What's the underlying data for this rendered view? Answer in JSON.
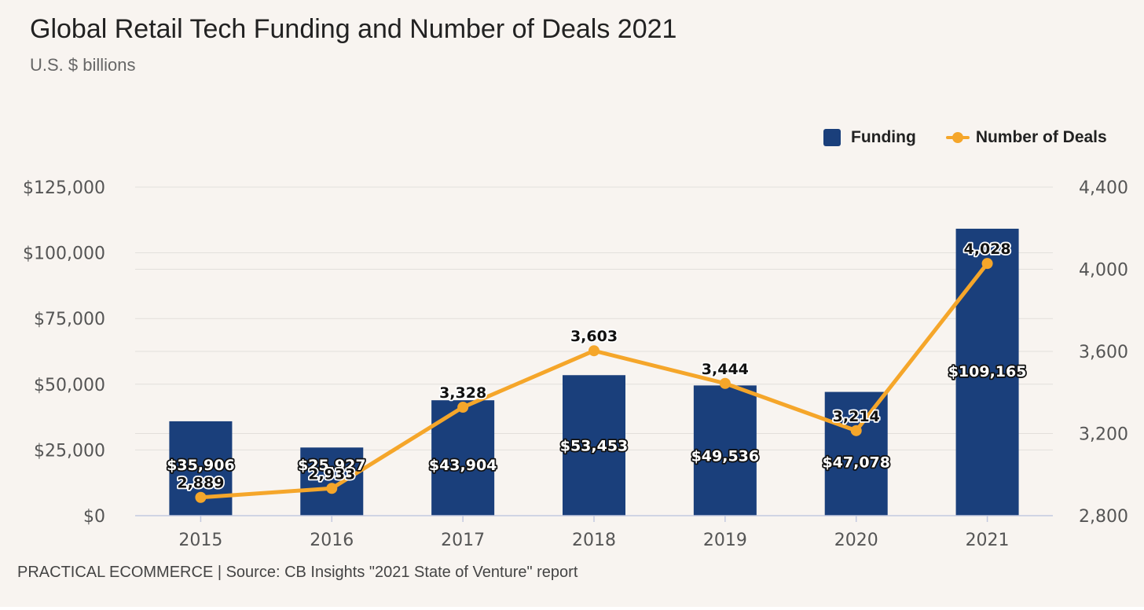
{
  "title": "Global Retail Tech Funding and Number of Deals 2021",
  "subtitle": "U.S. $ billions",
  "source": "PRACTICAL ECOMMERCE | Source: CB Insights \"2021 State of Venture\" report",
  "colors": {
    "background": "#f8f4f0",
    "funding": "#1a3f7b",
    "deals": "#f5a62a",
    "grid": "#e2dfdb",
    "axis": "#c3c9e0"
  },
  "chart_data": {
    "type": "bar",
    "categories": [
      "2015",
      "2016",
      "2017",
      "2018",
      "2019",
      "2020",
      "2021"
    ],
    "series": [
      {
        "name": "Funding",
        "type": "bar",
        "axis": "left",
        "values": [
          35906,
          25927,
          43904,
          53453,
          49536,
          47078,
          109165
        ],
        "labels": [
          "$35,906",
          "$25,927",
          "$43,904",
          "$53,453",
          "$49,536",
          "$47,078",
          "$109,165"
        ]
      },
      {
        "name": "Number of Deals",
        "type": "line",
        "axis": "right",
        "values": [
          2889,
          2933,
          3328,
          3603,
          3444,
          3214,
          4028
        ],
        "labels": [
          "2,889",
          "2,933",
          "3,328",
          "3,603",
          "3,444",
          "3,214",
          "4,028"
        ]
      }
    ],
    "y_left": {
      "ylim": [
        0,
        125000
      ],
      "ticks": [
        0,
        25000,
        50000,
        75000,
        100000,
        125000
      ],
      "tick_labels": [
        "$0",
        "$25,000",
        "$50,000",
        "$75,000",
        "$100,000",
        "$125,000"
      ]
    },
    "y_right": {
      "ylim": [
        2800,
        4400
      ],
      "ticks": [
        2800,
        3200,
        3600,
        4000,
        4400
      ],
      "tick_labels": [
        "2,800",
        "3,200",
        "3,600",
        "4,000",
        "4,400"
      ]
    },
    "grid": true,
    "legend": "top-right"
  }
}
